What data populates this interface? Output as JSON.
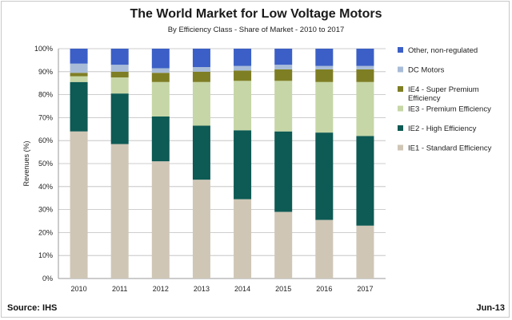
{
  "title": "The World Market for Low Voltage Motors",
  "subtitle": "By Efficiency Class - Share of Market - 2010 to 2017",
  "footer": {
    "source": "Source: IHS",
    "date": "Jun-13"
  },
  "colors": {
    "other": "#3b5fc6",
    "dc": "#a8bcd8",
    "ie4": "#7e7e24",
    "ie3": "#c6d6a6",
    "ie2": "#0e5a54",
    "ie1": "#cfc6b6"
  },
  "chart_data": {
    "type": "bar",
    "stacked": true,
    "ylabel": "Revenues (%)",
    "xlabel": "",
    "ylim": [
      0,
      100
    ],
    "yticks": [
      "0%",
      "10%",
      "20%",
      "30%",
      "40%",
      "50%",
      "60%",
      "70%",
      "80%",
      "90%",
      "100%"
    ],
    "categories": [
      "2010",
      "2011",
      "2012",
      "2013",
      "2014",
      "2015",
      "2016",
      "2017"
    ],
    "grid": "horizontal",
    "legend_position": "right",
    "series": [
      {
        "name": "IE1 - Standard Efficiency",
        "key": "ie1",
        "values": [
          64,
          58.5,
          51,
          43,
          34.5,
          29,
          25.5,
          23
        ]
      },
      {
        "name": "IE2 - High Efficiency",
        "key": "ie2",
        "values": [
          21.5,
          22,
          19.5,
          23.5,
          30,
          35,
          38,
          39
        ]
      },
      {
        "name": "IE3 - Premium Efficiency",
        "key": "ie3",
        "values": [
          2.5,
          7,
          15,
          19,
          21.5,
          22,
          22,
          23.5
        ]
      },
      {
        "name": "IE4 - Super Premium Efficiency",
        "key": "ie4",
        "values": [
          1.5,
          2.5,
          4,
          4.5,
          4.5,
          5,
          5.5,
          5.5
        ]
      },
      {
        "name": "DC Motors",
        "key": "dc",
        "values": [
          4,
          3,
          2,
          2,
          2,
          2,
          1.5,
          1.5
        ]
      },
      {
        "name": "Other, non-regulated",
        "key": "other",
        "values": [
          6.5,
          7,
          8.5,
          8,
          7.5,
          7,
          7.5,
          7.5
        ]
      }
    ],
    "legend_order": [
      "Other, non-regulated",
      "DC Motors",
      "IE4 - Super Premium Efficiency",
      "IE3 - Premium Efficiency",
      "IE2 - High Efficiency",
      "IE1 - Standard Efficiency"
    ]
  }
}
